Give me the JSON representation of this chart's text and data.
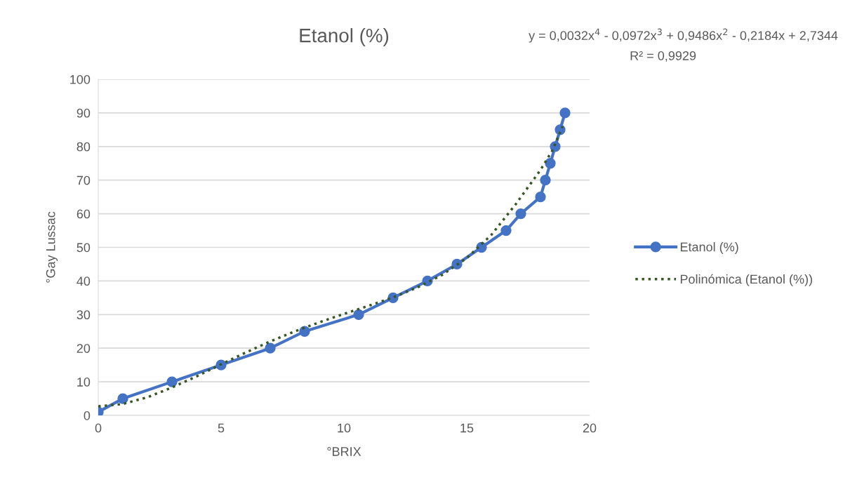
{
  "chart_data": {
    "type": "line",
    "title": "Etanol (%)",
    "xlabel": "°BRIX",
    "ylabel": "°Gay Lussac",
    "xlim": [
      0,
      20
    ],
    "xticks": [
      0,
      5,
      10,
      15,
      20
    ],
    "ylim": [
      0,
      100
    ],
    "yticks": [
      0,
      10,
      20,
      30,
      40,
      50,
      60,
      70,
      80,
      90,
      100
    ],
    "grid": "y",
    "legend": "right",
    "annotations": [
      "y = 0,0032x$^{4}$ - 0,0972x$^{3}$ + 0,9486x$^{2}$ - 0,2184x + 2,7344",
      "R² = 0,9929"
    ],
    "series": [
      {
        "name": "Etanol (%)",
        "color": "#4472c4",
        "marker": "circle",
        "line_style": "solid",
        "x": [
          0,
          1,
          3,
          5,
          7,
          8.4,
          10.6,
          12,
          13.4,
          14.6,
          15.6,
          16.6,
          17.2,
          18,
          18.2,
          18.4,
          18.6,
          18.8,
          19
        ],
        "values": [
          1,
          5,
          10,
          15,
          20,
          25,
          30,
          35,
          40,
          45,
          50,
          55,
          60,
          65,
          70,
          75,
          80,
          85,
          90
        ]
      },
      {
        "name": "Polinómica (Etanol (%))",
        "color": "#375623",
        "marker": "none",
        "line_style": "dotted",
        "x": [
          0,
          1,
          2,
          3,
          4,
          5,
          6,
          7,
          8,
          9,
          10,
          11,
          12,
          13,
          14,
          15,
          16,
          17,
          18,
          18.5,
          18.9
        ],
        "values": [
          2.7,
          3.4,
          5.4,
          8.3,
          11.6,
          15.2,
          18.7,
          22,
          25,
          27.7,
          30.2,
          32.6,
          35.1,
          38.1,
          41.8,
          46.8,
          53.7,
          62.9,
          73,
          79,
          86
        ]
      }
    ]
  }
}
